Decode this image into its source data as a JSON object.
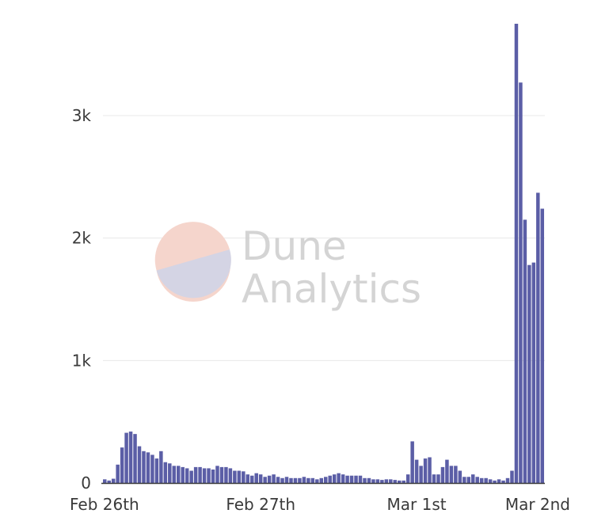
{
  "watermark": {
    "line1": "Dune",
    "line2": "Analytics",
    "logo_top_color": "#f5d5cc",
    "logo_bottom_color": "#d4d4e4"
  },
  "chart_data": {
    "type": "bar",
    "title": "",
    "xlabel": "",
    "ylabel": "",
    "bar_color": "#5b5ea6",
    "grid": true,
    "ylim": [
      0,
      3750
    ],
    "y_ticks": [
      0,
      1000,
      2000,
      3000
    ],
    "y_tick_labels": [
      "0",
      "1k",
      "2k",
      "3k"
    ],
    "x_tick_labels": [
      "Feb 26th",
      "Feb 27th",
      "Mar 1st",
      "Mar 2nd"
    ],
    "x_tick_bar_index": [
      0,
      36,
      72,
      101
    ],
    "values": [
      30,
      20,
      35,
      150,
      290,
      410,
      420,
      400,
      300,
      260,
      250,
      230,
      200,
      260,
      170,
      160,
      140,
      140,
      130,
      120,
      100,
      130,
      130,
      120,
      120,
      110,
      140,
      130,
      130,
      120,
      100,
      100,
      95,
      70,
      60,
      80,
      70,
      50,
      60,
      70,
      50,
      40,
      50,
      40,
      40,
      40,
      50,
      40,
      40,
      30,
      40,
      50,
      60,
      70,
      80,
      70,
      60,
      60,
      60,
      60,
      40,
      40,
      30,
      30,
      25,
      30,
      30,
      25,
      20,
      20,
      70,
      340,
      190,
      140,
      200,
      210,
      70,
      70,
      130,
      190,
      140,
      140,
      100,
      50,
      50,
      70,
      50,
      40,
      40,
      30,
      20,
      30,
      20,
      40,
      100,
      3750,
      3270,
      2150,
      1780,
      1800,
      2370,
      2240
    ]
  }
}
